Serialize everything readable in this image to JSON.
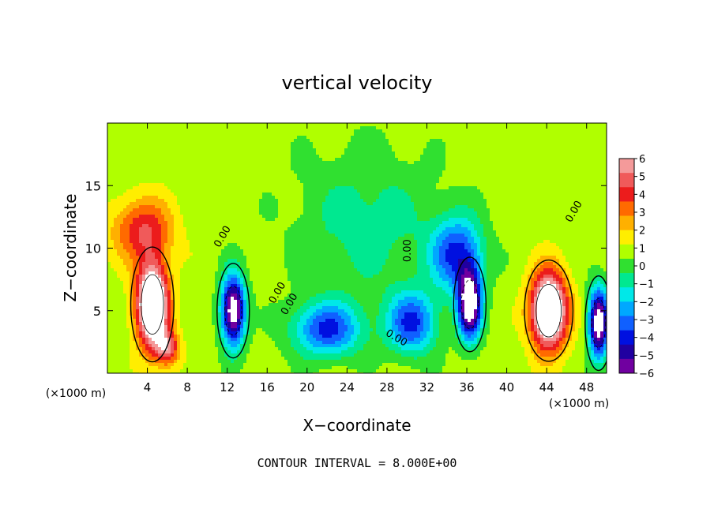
{
  "chart_data": {
    "type": "heatmap",
    "title": "vertical velocity",
    "xlabel": "X−coordinate",
    "ylabel": "Z−coordinate",
    "x_unit": "(×1000 m)",
    "x_unit_right": "(×1000 m)",
    "xlim": [
      0,
      50
    ],
    "ylim": [
      0,
      20
    ],
    "x_ticks": [
      4,
      8,
      12,
      16,
      20,
      24,
      28,
      32,
      36,
      40,
      44,
      48
    ],
    "x_tick_labels": [
      "4",
      "8",
      "12",
      "16",
      "20",
      "24",
      "28",
      "32",
      "36",
      "40",
      "44",
      "48"
    ],
    "y_ticks": [
      5,
      10,
      15
    ],
    "y_tick_labels": [
      "5",
      "10",
      "15"
    ],
    "colorbar": {
      "min": -6,
      "max": 6,
      "tick_labels": [
        "6",
        "5",
        "4",
        "3",
        "2",
        "1",
        "0",
        "−1",
        "−2",
        "−3",
        "−4",
        "−5",
        "−6"
      ],
      "colors": [
        "#f49a9a",
        "#f05a5a",
        "#ec1c1c",
        "#ff6a00",
        "#ffb000",
        "#ffee00",
        "#b0ff00",
        "#30e030",
        "#00e890",
        "#00e8e8",
        "#00a8ff",
        "#1060ff",
        "#0010e0",
        "#2000a0",
        "#7000a0"
      ]
    },
    "contour_labels": [
      "0.00",
      "0.00",
      "0.00",
      "0.00",
      "0.00",
      "0.00"
    ],
    "features": [
      {
        "kind": "updraft",
        "x": 4.5,
        "z": 5.5,
        "sx": 1.6,
        "sz": 3.4,
        "value": 9
      },
      {
        "kind": "updraft",
        "x": 44.2,
        "z": 5.0,
        "sx": 1.8,
        "sz": 3.0,
        "value": 9
      },
      {
        "kind": "downdraft",
        "x": 12.6,
        "z": 5.0,
        "sx": 1.2,
        "sz": 2.8,
        "value": -8
      },
      {
        "kind": "downdraft",
        "x": 36.3,
        "z": 5.5,
        "sx": 1.2,
        "sz": 2.8,
        "value": -8
      },
      {
        "kind": "downdraft",
        "x": 49.2,
        "z": 4.0,
        "sx": 1.0,
        "sz": 2.8,
        "value": -8
      },
      {
        "kind": "downdraft",
        "x": 35.0,
        "z": 9.5,
        "sx": 2.6,
        "sz": 3.0,
        "value": -4.5
      },
      {
        "kind": "downdraft",
        "x": 22.0,
        "z": 3.5,
        "sx": 3.5,
        "sz": 2.2,
        "value": -4.5
      },
      {
        "kind": "downdraft",
        "x": 30.5,
        "z": 4.0,
        "sx": 2.5,
        "sz": 2.5,
        "value": -4.5
      },
      {
        "kind": "downdraft",
        "x": 26.0,
        "z": 12.0,
        "sx": 7.0,
        "sz": 6.0,
        "value": -1.6
      },
      {
        "kind": "updraft",
        "x": 3.5,
        "z": 11.5,
        "sx": 3.0,
        "sz": 2.5,
        "value": 3.5
      },
      {
        "kind": "updraft",
        "x": 6.0,
        "z": 2.0,
        "sx": 1.2,
        "sz": 1.4,
        "value": 4.0
      }
    ],
    "grid": false,
    "legend": "colorbar-right"
  },
  "footer": {
    "contour_interval": "CONTOUR INTERVAL = 8.000E+00"
  }
}
